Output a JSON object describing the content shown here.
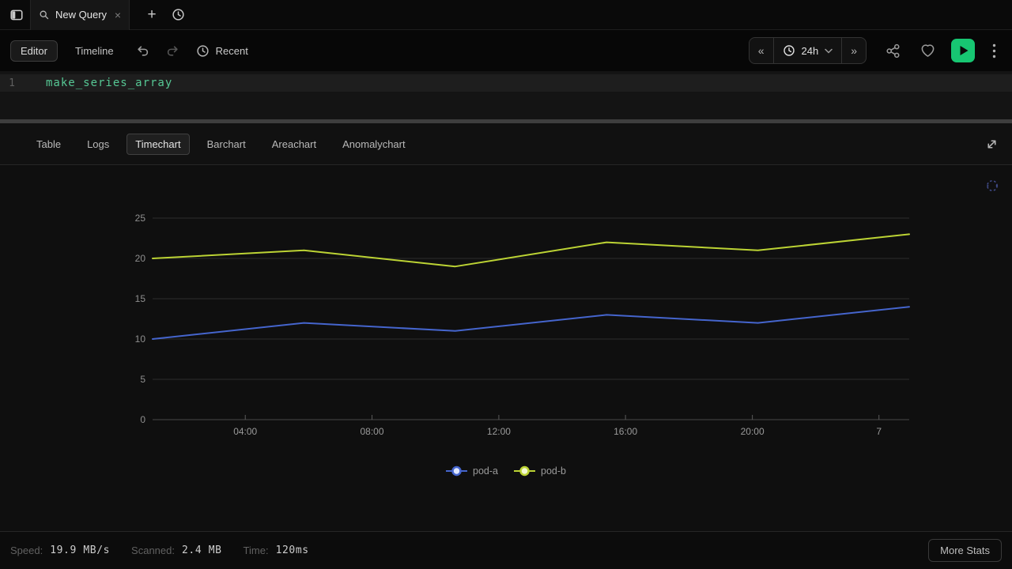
{
  "tab_bar": {
    "tab": {
      "title": "New Query",
      "close_glyph": "×"
    },
    "new_tab_glyph": "+"
  },
  "toolbar": {
    "editor_label": "Editor",
    "timeline_label": "Timeline",
    "recent_label": "Recent",
    "time_range": {
      "prev_glyph": "«",
      "value": "24h",
      "next_glyph": "»"
    }
  },
  "editor": {
    "line_number": "1",
    "code": "make_series_array"
  },
  "results": {
    "tabs": [
      "Table",
      "Logs",
      "Timechart",
      "Barchart",
      "Areachart",
      "Anomalychart"
    ],
    "active_tab": "Timechart"
  },
  "chart_data": {
    "type": "line",
    "title": "",
    "xlabel": "",
    "ylabel": "",
    "ylim": [
      0,
      25
    ],
    "yticks": [
      25,
      20,
      15,
      10,
      5,
      0
    ],
    "grid": true,
    "legend_position": "bottom",
    "x_ticks": [
      {
        "label": "04:00",
        "f": 0.1225
      },
      {
        "label": "08:00",
        "f": 0.29
      },
      {
        "label": "12:00",
        "f": 0.4576
      },
      {
        "label": "16:00",
        "f": 0.625
      },
      {
        "label": "20:00",
        "f": 0.7927
      },
      {
        "label": "7",
        "f": 0.96
      }
    ],
    "series": [
      {
        "name": "pod-a",
        "color": "#4565cd",
        "marker_fill": "#dfe7ff",
        "values": [
          10,
          12,
          11,
          13,
          12,
          14
        ]
      },
      {
        "name": "pod-b",
        "color": "#bcd334",
        "marker_fill": "#f4fad4",
        "values": [
          20,
          21,
          19,
          22,
          21,
          23
        ]
      }
    ]
  },
  "status_bar": {
    "items": [
      {
        "label": "Speed:",
        "value": "19.9 MB/s"
      },
      {
        "label": "Scanned:",
        "value": "2.4 MB"
      },
      {
        "label": "Time:",
        "value": "120ms"
      }
    ],
    "more_stats_label": "More Stats"
  },
  "colors": {
    "run_button": "#17c672",
    "code_green": "#56c794",
    "gridline": "#2e2e2e",
    "axis_line": "#4a4a4a",
    "tick_label": "#9a9a9a"
  }
}
